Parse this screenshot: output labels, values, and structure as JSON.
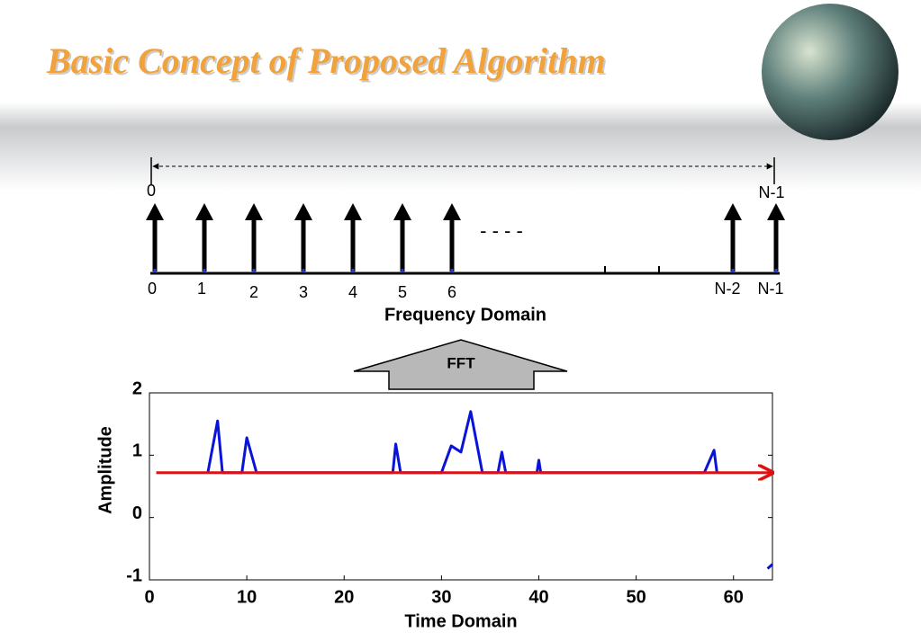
{
  "slide": {
    "title": "Basic Concept of Proposed Algorithm",
    "frequency": {
      "span_start": "0",
      "span_end": "N-1",
      "subcarriers": [
        "0",
        "1",
        "2",
        "3",
        "4",
        "5",
        "6",
        "N-2",
        "N-1"
      ],
      "ellipsis": "- - - -",
      "label": "Frequency Domain"
    },
    "transform": "FFT"
  },
  "chart_data": {
    "type": "line",
    "xlabel": "Time Domain",
    "ylabel": "Amplitude",
    "xlim": [
      0,
      64
    ],
    "ylim": [
      -1,
      2
    ],
    "xticks": [
      0,
      10,
      20,
      30,
      40,
      50,
      60
    ],
    "yticks": [
      -1,
      0,
      1,
      2
    ],
    "series": [
      {
        "color": "#0a14d8",
        "x": [
          6,
          7,
          7.5,
          9.5,
          10,
          11,
          25,
          25.3,
          25.8,
          30,
          31,
          32,
          33,
          34.2,
          35.8,
          36.2,
          36.6,
          39.8,
          40,
          40.2,
          57,
          58,
          58.3,
          60,
          63.5,
          64
        ],
        "values": [
          0.72,
          1.55,
          0.72,
          0.72,
          1.28,
          0.72,
          0.72,
          1.18,
          0.72,
          0.72,
          1.15,
          1.05,
          1.7,
          0.72,
          0.72,
          1.05,
          0.72,
          0.72,
          0.92,
          0.72,
          0.72,
          1.08,
          0.72,
          null,
          -0.82,
          -0.75
        ]
      },
      {
        "color": "#e01010",
        "x": [
          0.7,
          64
        ],
        "values": [
          0.72,
          0.72
        ]
      }
    ]
  }
}
